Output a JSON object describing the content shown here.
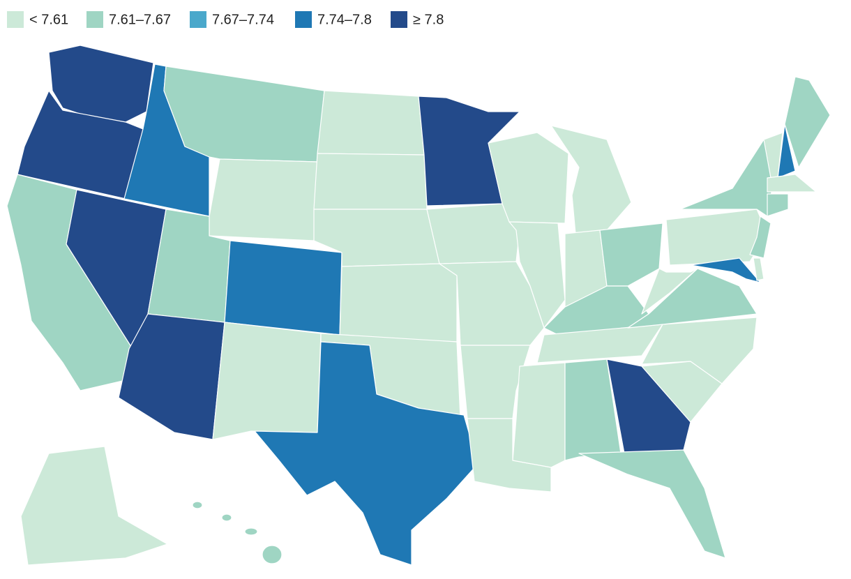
{
  "legend": [
    {
      "label": "< 7.61",
      "color": "#cce9d8"
    },
    {
      "label": "7.61–7.67",
      "color": "#9fd5c3"
    },
    {
      "label": "7.67–7.74",
      "color": "#4aa8cb"
    },
    {
      "label": "7.74–7.8",
      "color": "#1f78b4"
    },
    {
      "label": "≥ 7.8",
      "color": "#234a8a"
    }
  ]
}
